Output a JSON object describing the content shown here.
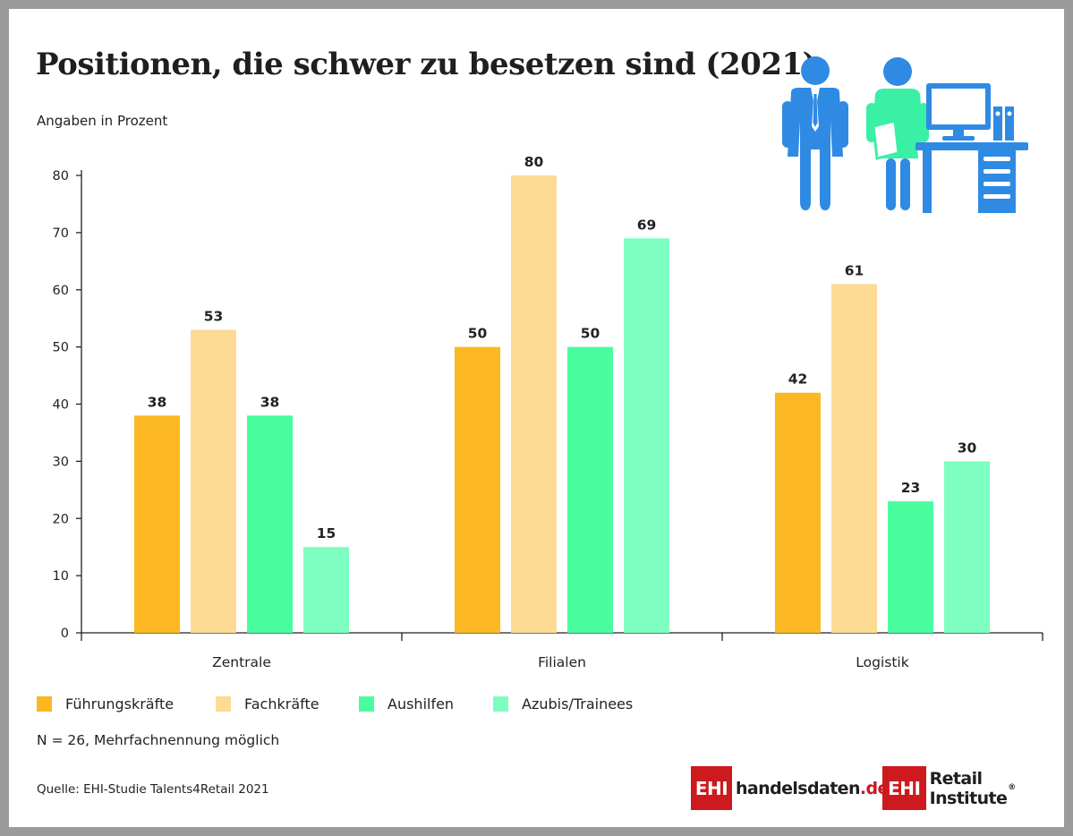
{
  "header": {
    "title": "Positionen, die schwer zu besetzen sind (2021)",
    "subtitle": "Angaben in Prozent"
  },
  "footer": {
    "note": "N = 26, Mehrfachnennung möglich",
    "source": "Quelle: EHI-Studie Talents4Retail 2021"
  },
  "logos": {
    "box_text": "EHI",
    "handelsdaten_main": "handelsdaten",
    "handelsdaten_tld": ".de",
    "retail_text": "Retail Institute",
    "registered": "®"
  },
  "chart_data": {
    "type": "bar",
    "categories": [
      "Zentrale",
      "Filialen",
      "Logistik"
    ],
    "series": [
      {
        "name": "Führungskräfte",
        "color": "#fcb823",
        "values": [
          38,
          50,
          42
        ]
      },
      {
        "name": "Fachkräfte",
        "color": "#fddb94",
        "values": [
          53,
          80,
          61
        ]
      },
      {
        "name": "Aushilfen",
        "color": "#49fd9f",
        "values": [
          38,
          50,
          23
        ]
      },
      {
        "name": "Azubis/Trainees",
        "color": "#7efec0",
        "values": [
          15,
          69,
          30
        ]
      }
    ],
    "ylim": [
      0,
      80
    ],
    "yticks": [
      0,
      10,
      20,
      30,
      40,
      50,
      60,
      70,
      80
    ],
    "grid": false,
    "legend": "bottom",
    "data_labels": true
  },
  "colors": {
    "icon_blue": "#2f8ae4",
    "icon_green": "#3af0a4",
    "brand_red": "#cc1a1f"
  },
  "icons": [
    "man-figure-icon",
    "woman-figure-icon",
    "office-desk-icon"
  ]
}
